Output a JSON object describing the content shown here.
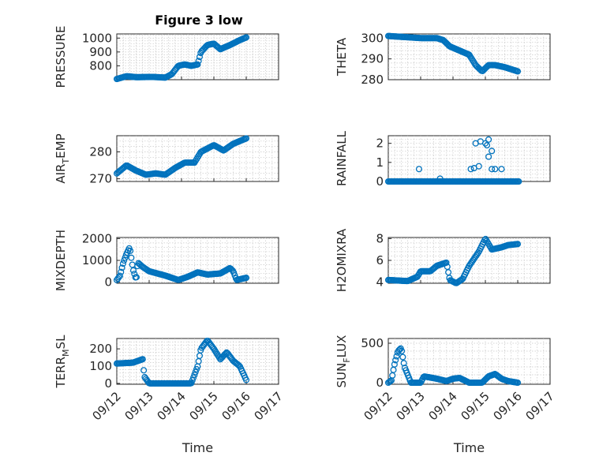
{
  "figure": {
    "title": "Figure 3 low"
  },
  "chart_data": [
    {
      "id": "pressure",
      "type": "scatter",
      "ylabel": "PRESSURE",
      "title": "Figure 3 low",
      "ylim": [
        700,
        1030
      ],
      "yticks": [
        800,
        900,
        1000
      ],
      "ytick_labels": [
        "800",
        "900",
        "1000"
      ],
      "xlim": [
        0,
        5
      ],
      "xticks": [
        0,
        1,
        2,
        3,
        4,
        5
      ],
      "xtick_labels": [
        "09/12",
        "09/13",
        "09/14",
        "09/15",
        "09/16",
        "09/17"
      ],
      "show_xtick_labels": false,
      "xlabel": "",
      "keys": [
        [
          0,
          705
        ],
        [
          0.3,
          725
        ],
        [
          0.6,
          718
        ],
        [
          1.1,
          720
        ],
        [
          1.5,
          715
        ],
        [
          1.7,
          740
        ],
        [
          1.9,
          800
        ],
        [
          2.1,
          810
        ],
        [
          2.3,
          800
        ],
        [
          2.5,
          810
        ],
        [
          2.6,
          900
        ],
        [
          2.8,
          950
        ],
        [
          3.0,
          960
        ],
        [
          3.2,
          920
        ],
        [
          3.5,
          950
        ],
        [
          3.8,
          985
        ],
        [
          4.0,
          1005
        ]
      ],
      "grid": true
    },
    {
      "id": "theta",
      "type": "scatter",
      "ylabel": "THETA",
      "ylim": [
        280,
        302
      ],
      "yticks": [
        280,
        290,
        300
      ],
      "ytick_labels": [
        "280",
        "290",
        "300"
      ],
      "xlim": [
        0,
        5
      ],
      "xticks": [
        0,
        1,
        2,
        3,
        4,
        5
      ],
      "xtick_labels": [
        "09/12",
        "09/13",
        "09/14",
        "09/15",
        "09/16",
        "09/17"
      ],
      "show_xtick_labels": false,
      "xlabel": "",
      "keys": [
        [
          0,
          301
        ],
        [
          0.5,
          300.5
        ],
        [
          1.0,
          300
        ],
        [
          1.5,
          300
        ],
        [
          1.7,
          299
        ],
        [
          1.9,
          296
        ],
        [
          2.2,
          294
        ],
        [
          2.5,
          292
        ],
        [
          2.7,
          287
        ],
        [
          2.9,
          284
        ],
        [
          3.1,
          287
        ],
        [
          3.3,
          287
        ],
        [
          3.6,
          286
        ],
        [
          4.0,
          284
        ]
      ],
      "grid": true
    },
    {
      "id": "air_temp",
      "type": "scatter",
      "ylabel": "AIR",
      "ylabel_sub": "T",
      "ylabel_rest": "EMP",
      "ylim": [
        269,
        286
      ],
      "yticks": [
        270,
        280
      ],
      "ytick_labels": [
        "270",
        "280"
      ],
      "xlim": [
        0,
        5
      ],
      "xticks": [
        0,
        1,
        2,
        3,
        4,
        5
      ],
      "xtick_labels": [
        "09/12",
        "09/13",
        "09/14",
        "09/15",
        "09/16",
        "09/17"
      ],
      "show_xtick_labels": false,
      "xlabel": "",
      "keys": [
        [
          0,
          272
        ],
        [
          0.3,
          275
        ],
        [
          0.6,
          273
        ],
        [
          0.9,
          271.5
        ],
        [
          1.2,
          272
        ],
        [
          1.5,
          271.5
        ],
        [
          1.8,
          274
        ],
        [
          2.1,
          276
        ],
        [
          2.4,
          276
        ],
        [
          2.6,
          280
        ],
        [
          3.0,
          282.5
        ],
        [
          3.3,
          280.5
        ],
        [
          3.6,
          283
        ],
        [
          3.8,
          284
        ],
        [
          4.0,
          285
        ]
      ],
      "grid": true
    },
    {
      "id": "rainfall",
      "type": "scatter",
      "ylabel": "RAINFALL",
      "ylim": [
        0,
        2.4
      ],
      "yticks": [
        0,
        1,
        2
      ],
      "ytick_labels": [
        "0",
        "1",
        "2"
      ],
      "xlim": [
        0,
        5
      ],
      "xticks": [
        0,
        1,
        2,
        3,
        4,
        5
      ],
      "xtick_labels": [
        "09/12",
        "09/13",
        "09/14",
        "09/15",
        "09/16",
        "09/17"
      ],
      "show_xtick_labels": false,
      "xlabel": "",
      "baseline": {
        "from": 0,
        "to": 4.05,
        "value": 0
      },
      "extra_points": [
        [
          0.95,
          0.65
        ],
        [
          1.6,
          0.15
        ],
        [
          2.55,
          0.65
        ],
        [
          2.65,
          0.7
        ],
        [
          2.7,
          2.0
        ],
        [
          2.8,
          0.8
        ],
        [
          2.85,
          2.1
        ],
        [
          3.0,
          2.0
        ],
        [
          3.05,
          1.9
        ],
        [
          3.1,
          2.2
        ],
        [
          3.1,
          1.3
        ],
        [
          3.2,
          1.6
        ],
        [
          3.2,
          0.65
        ],
        [
          3.3,
          0.65
        ],
        [
          3.5,
          0.65
        ],
        [
          2.9,
          0.0
        ],
        [
          3.6,
          0.0
        ]
      ],
      "grid": true
    },
    {
      "id": "mixdepth",
      "type": "scatter",
      "ylabel": "MIXDEPTH",
      "ylim": [
        -50,
        2050
      ],
      "yticks": [
        0,
        1000,
        2000
      ],
      "ytick_labels": [
        "0",
        "1000",
        "2000"
      ],
      "xlim": [
        0,
        5
      ],
      "xticks": [
        0,
        1,
        2,
        3,
        4,
        5
      ],
      "xtick_labels": [
        "09/12",
        "09/13",
        "09/14",
        "09/15",
        "09/16",
        "09/17"
      ],
      "show_xtick_labels": false,
      "xlabel": "",
      "keys": [
        [
          0,
          100
        ],
        [
          0.1,
          300
        ],
        [
          0.2,
          900
        ],
        [
          0.3,
          1300
        ],
        [
          0.4,
          1600
        ],
        [
          0.5,
          600
        ],
        [
          0.6,
          100
        ],
        [
          0.65,
          900
        ],
        [
          0.8,
          700
        ],
        [
          1.0,
          500
        ],
        [
          1.5,
          300
        ],
        [
          1.9,
          100
        ],
        [
          2.2,
          250
        ],
        [
          2.5,
          450
        ],
        [
          2.8,
          350
        ],
        [
          3.2,
          400
        ],
        [
          3.5,
          650
        ],
        [
          3.6,
          500
        ],
        [
          3.7,
          100
        ],
        [
          4.0,
          200
        ]
      ],
      "grid": true
    },
    {
      "id": "h2omixra",
      "type": "scatter",
      "ylabel": "H2OMIXRA",
      "ylim": [
        3.9,
        8.1
      ],
      "yticks": [
        4,
        6,
        8
      ],
      "ytick_labels": [
        "4",
        "6",
        "8"
      ],
      "xlim": [
        0,
        5
      ],
      "xticks": [
        0,
        1,
        2,
        3,
        4,
        5
      ],
      "xtick_labels": [
        "09/12",
        "09/13",
        "09/14",
        "09/15",
        "09/16",
        "09/17"
      ],
      "show_xtick_labels": false,
      "xlabel": "",
      "keys": [
        [
          0,
          4.2
        ],
        [
          0.6,
          4.1
        ],
        [
          0.9,
          4.5
        ],
        [
          1.0,
          5.0
        ],
        [
          1.3,
          5.0
        ],
        [
          1.5,
          5.5
        ],
        [
          1.8,
          5.8
        ],
        [
          1.9,
          4.2
        ],
        [
          2.1,
          3.9
        ],
        [
          2.3,
          4.3
        ],
        [
          2.5,
          5.5
        ],
        [
          2.8,
          6.8
        ],
        [
          3.0,
          8.0
        ],
        [
          3.2,
          7.0
        ],
        [
          3.5,
          7.2
        ],
        [
          3.7,
          7.4
        ],
        [
          4.0,
          7.5
        ]
      ],
      "grid": true
    },
    {
      "id": "terr_msl",
      "type": "scatter",
      "ylabel": "TERR",
      "ylabel_sub": "M",
      "ylabel_rest": "SL",
      "ylim": [
        -5,
        260
      ],
      "yticks": [
        0,
        100,
        200
      ],
      "ytick_labels": [
        "0",
        "100",
        "200"
      ],
      "xlim": [
        0,
        5
      ],
      "xticks": [
        0,
        1,
        2,
        3,
        4,
        5
      ],
      "xtick_labels": [
        "09/12",
        "09/13",
        "09/14",
        "09/15",
        "09/16",
        "09/17"
      ],
      "show_xtick_labels": true,
      "xlabel": "Time",
      "keys": [
        [
          0,
          115
        ],
        [
          0.5,
          120
        ],
        [
          0.8,
          140
        ],
        [
          0.85,
          40
        ],
        [
          1.0,
          0
        ],
        [
          2.3,
          0
        ],
        [
          2.5,
          100
        ],
        [
          2.6,
          200
        ],
        [
          2.8,
          250
        ],
        [
          3.0,
          200
        ],
        [
          3.2,
          140
        ],
        [
          3.4,
          180
        ],
        [
          3.6,
          130
        ],
        [
          3.8,
          100
        ],
        [
          4.0,
          20
        ]
      ],
      "grid": true
    },
    {
      "id": "sun_flux",
      "type": "scatter",
      "ylabel": "SUN",
      "ylabel_sub": "F",
      "ylabel_rest": "LUX",
      "ylim": [
        -20,
        560
      ],
      "yticks": [
        0,
        500
      ],
      "ytick_labels": [
        "0",
        "500"
      ],
      "xlim": [
        0,
        5
      ],
      "xticks": [
        0,
        1,
        2,
        3,
        4,
        5
      ],
      "xtick_labels": [
        "09/12",
        "09/13",
        "09/14",
        "09/15",
        "09/16",
        "09/17"
      ],
      "show_xtick_labels": true,
      "xlabel": "Time",
      "keys": [
        [
          0,
          0
        ],
        [
          0.1,
          30
        ],
        [
          0.2,
          250
        ],
        [
          0.3,
          400
        ],
        [
          0.4,
          440
        ],
        [
          0.5,
          200
        ],
        [
          0.6,
          100
        ],
        [
          0.7,
          0
        ],
        [
          1.0,
          0
        ],
        [
          1.1,
          80
        ],
        [
          1.5,
          50
        ],
        [
          1.8,
          20
        ],
        [
          2.0,
          50
        ],
        [
          2.2,
          60
        ],
        [
          2.5,
          0
        ],
        [
          2.9,
          0
        ],
        [
          3.1,
          80
        ],
        [
          3.3,
          110
        ],
        [
          3.5,
          50
        ],
        [
          3.7,
          20
        ],
        [
          4.0,
          0
        ]
      ],
      "grid": true
    }
  ]
}
